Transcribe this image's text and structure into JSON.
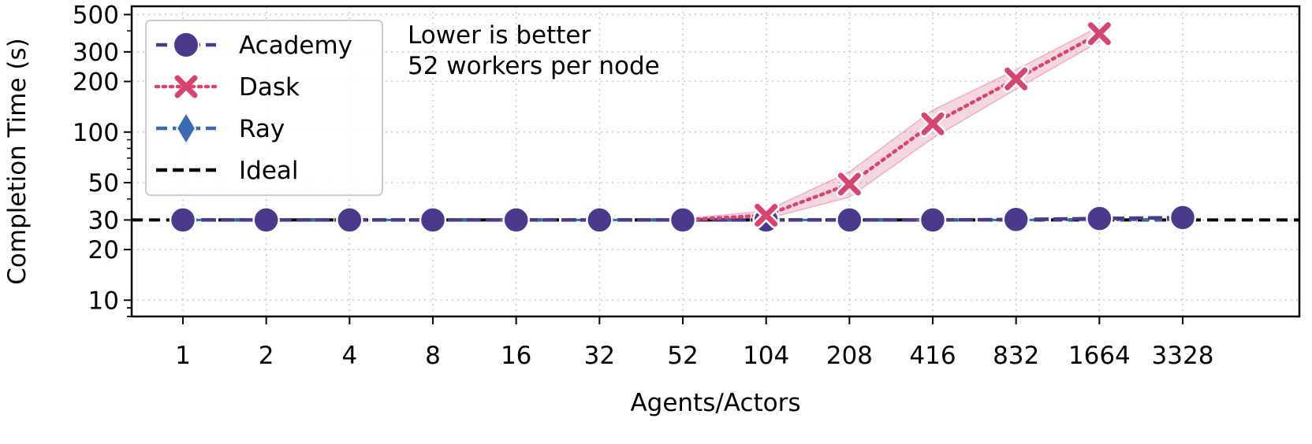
{
  "chart_data": {
    "type": "line",
    "yscale": "log",
    "xlabel": "Agents/Actors",
    "ylabel": "Completion Time (s)",
    "ylim": [
      8,
      560
    ],
    "categories": [
      "1",
      "2",
      "4",
      "8",
      "16",
      "32",
      "52",
      "104",
      "208",
      "416",
      "832",
      "1664",
      "3328"
    ],
    "y_ticks": [
      10,
      20,
      30,
      50,
      100,
      200,
      300,
      500
    ],
    "y_tick_labels": [
      "10",
      "20",
      "30",
      "50",
      "100",
      "200",
      "300",
      "500"
    ],
    "annotations": [
      "Lower is better",
      "52 workers per node"
    ],
    "grid": true,
    "legend_position": "top-left",
    "series": [
      {
        "name": "Academy",
        "color": "#4b3a8c",
        "marker": "circle",
        "linestyle": "dashed",
        "values": [
          30,
          30,
          30,
          30,
          30,
          30,
          30,
          30,
          30,
          30,
          30.2,
          30.6,
          31
        ]
      },
      {
        "name": "Dask",
        "color": "#d6456f",
        "marker": "x",
        "linestyle": "dotted",
        "values": [
          null,
          null,
          null,
          null,
          null,
          null,
          30,
          32,
          49,
          112,
          207,
          385,
          null
        ],
        "band_lower": [
          null,
          null,
          null,
          null,
          null,
          null,
          30,
          30.5,
          41,
          92,
          180,
          345,
          null
        ],
        "band_upper": [
          null,
          null,
          null,
          null,
          null,
          null,
          30.5,
          34,
          58,
          135,
          235,
          425,
          null
        ]
      },
      {
        "name": "Ray",
        "color": "#3a6ab0",
        "marker": "diamond",
        "linestyle": "dashed",
        "values": [
          30,
          30,
          30,
          30,
          30,
          30,
          30,
          30,
          30,
          30,
          30,
          30,
          30
        ]
      },
      {
        "name": "Ideal",
        "color": "#000000",
        "linestyle": "dashed",
        "values": [
          30,
          30,
          30,
          30,
          30,
          30,
          30,
          30,
          30,
          30,
          30,
          30,
          30
        ]
      }
    ]
  }
}
